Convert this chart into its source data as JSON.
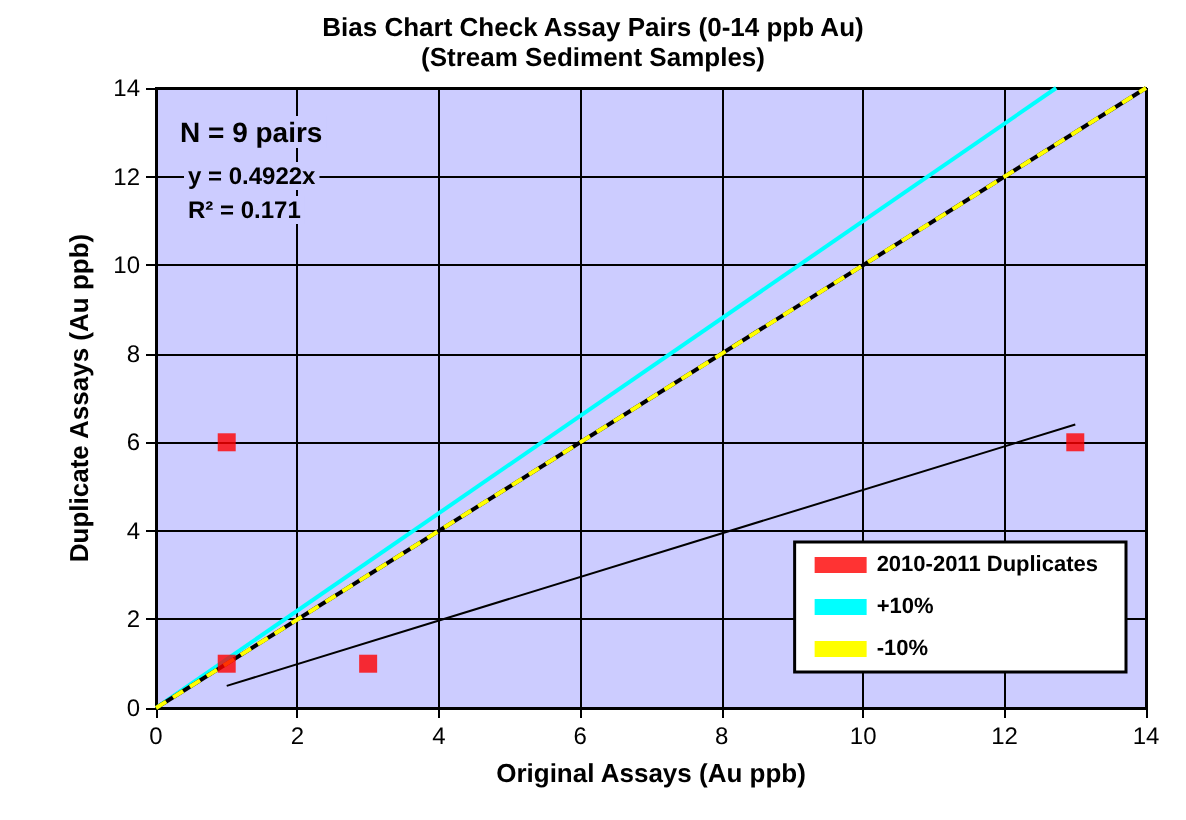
{
  "chart_data": {
    "type": "scatter",
    "title": "Bias Chart Check Assay Pairs (0-14 ppb Au)",
    "subtitle": "(Stream Sediment Samples)",
    "xlabel": "Original Assays (Au ppb)",
    "ylabel": "Duplicate Assays (Au ppb)",
    "xlim": [
      0,
      14
    ],
    "ylim": [
      0,
      14
    ],
    "xticks": [
      0,
      2,
      4,
      6,
      8,
      10,
      12,
      14
    ],
    "yticks": [
      0,
      2,
      4,
      6,
      8,
      10,
      12,
      14
    ],
    "grid": true,
    "legend": "bottom right",
    "marker": "square",
    "annotations": [
      "N = 9 pairs",
      "y = 0.4922x",
      "R² = 0.171"
    ],
    "series": [
      {
        "name": "2010-2011 Duplicates",
        "color": "#ff0000",
        "x": [
          1,
          1,
          3,
          13
        ],
        "values": [
          6,
          1,
          1,
          6
        ]
      },
      {
        "name": "+10%",
        "type": "line",
        "color": "#00ffff",
        "marker": "none",
        "line_style": "solid",
        "x": [
          0,
          12.73
        ],
        "values": [
          0,
          14
        ]
      },
      {
        "type": "line",
        "color": "#000000",
        "marker": "none",
        "line_style": "solid",
        "x": [
          0,
          14
        ],
        "values": [
          0,
          14
        ]
      },
      {
        "name": "-10%",
        "type": "line",
        "color": "#ffff00",
        "marker": "none",
        "line_style": "dashed",
        "x": [
          0,
          14
        ],
        "values": [
          0,
          14
        ]
      },
      {
        "type": "line",
        "color": "#000000",
        "marker": "none",
        "line_style": "solid",
        "x": [
          1,
          13
        ],
        "values": [
          0.5,
          6.4
        ]
      }
    ]
  }
}
